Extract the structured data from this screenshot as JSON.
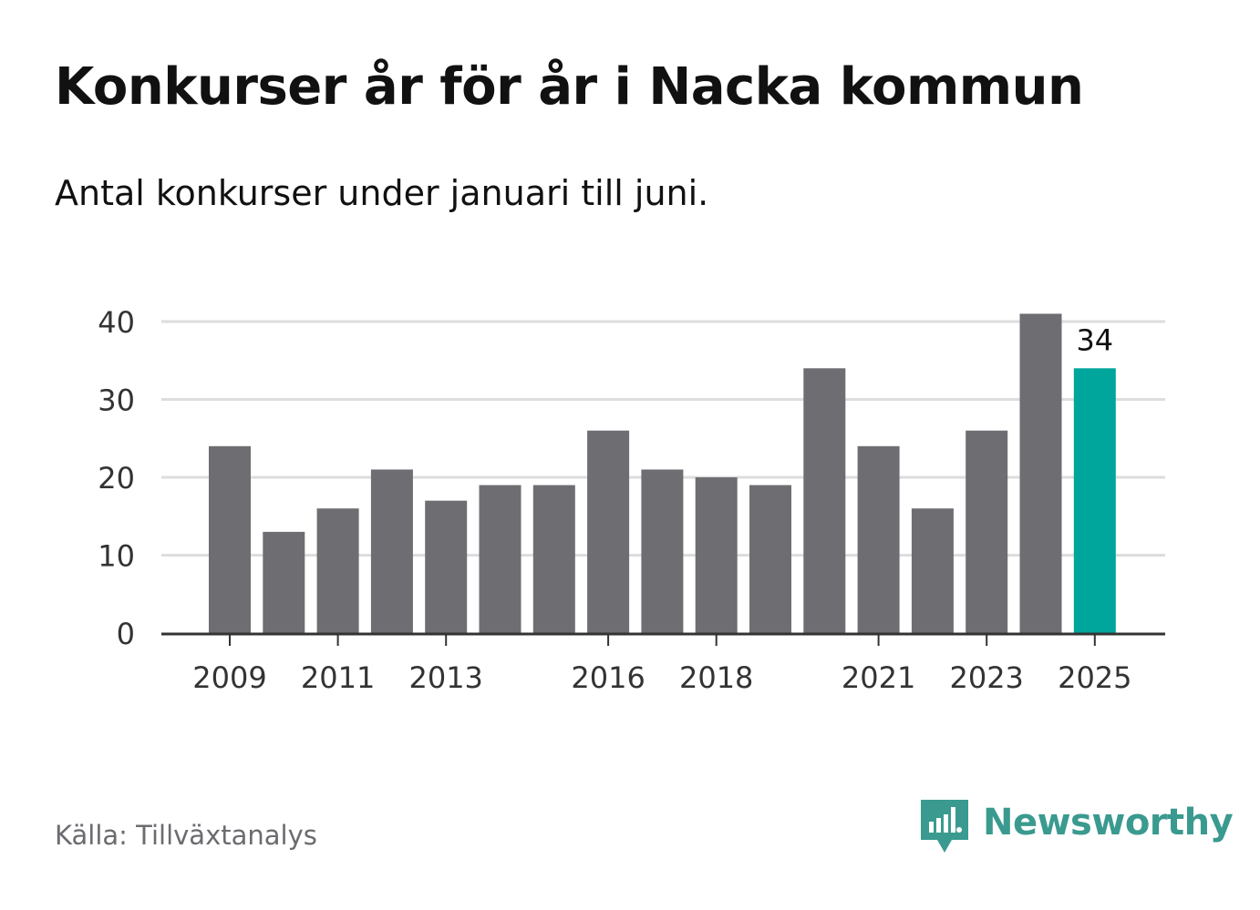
{
  "title": "Konkurser år för år i Nacka kommun",
  "subtitle": "Antal konkurser under januari till juni.",
  "source": "Källa: Tillväxtanalys",
  "brand": {
    "name": "Newsworthy",
    "icon": "newsworthy-logo-icon",
    "color": "#3a9a8f"
  },
  "chart_data": {
    "type": "bar",
    "categories": [
      "2009",
      "2010",
      "2011",
      "2012",
      "2013",
      "2014",
      "2015",
      "2016",
      "2017",
      "2018",
      "2019",
      "2020",
      "2021",
      "2022",
      "2023",
      "2024",
      "2025"
    ],
    "values": [
      24,
      13,
      16,
      21,
      17,
      19,
      19,
      26,
      21,
      20,
      19,
      34,
      24,
      16,
      26,
      41,
      34
    ],
    "x_tick_labels": [
      "2009",
      "2011",
      "2013",
      "2016",
      "2018",
      "2021",
      "2023",
      "2025"
    ],
    "y_ticks": [
      0,
      10,
      20,
      30,
      40
    ],
    "ylim": [
      0,
      40
    ],
    "highlight": {
      "category": "2025",
      "label": "34"
    },
    "grid": true,
    "colors": {
      "bar": "#6e6d72",
      "highlight": "#00a59b",
      "grid": "#dddddd",
      "axis": "#333333"
    }
  }
}
